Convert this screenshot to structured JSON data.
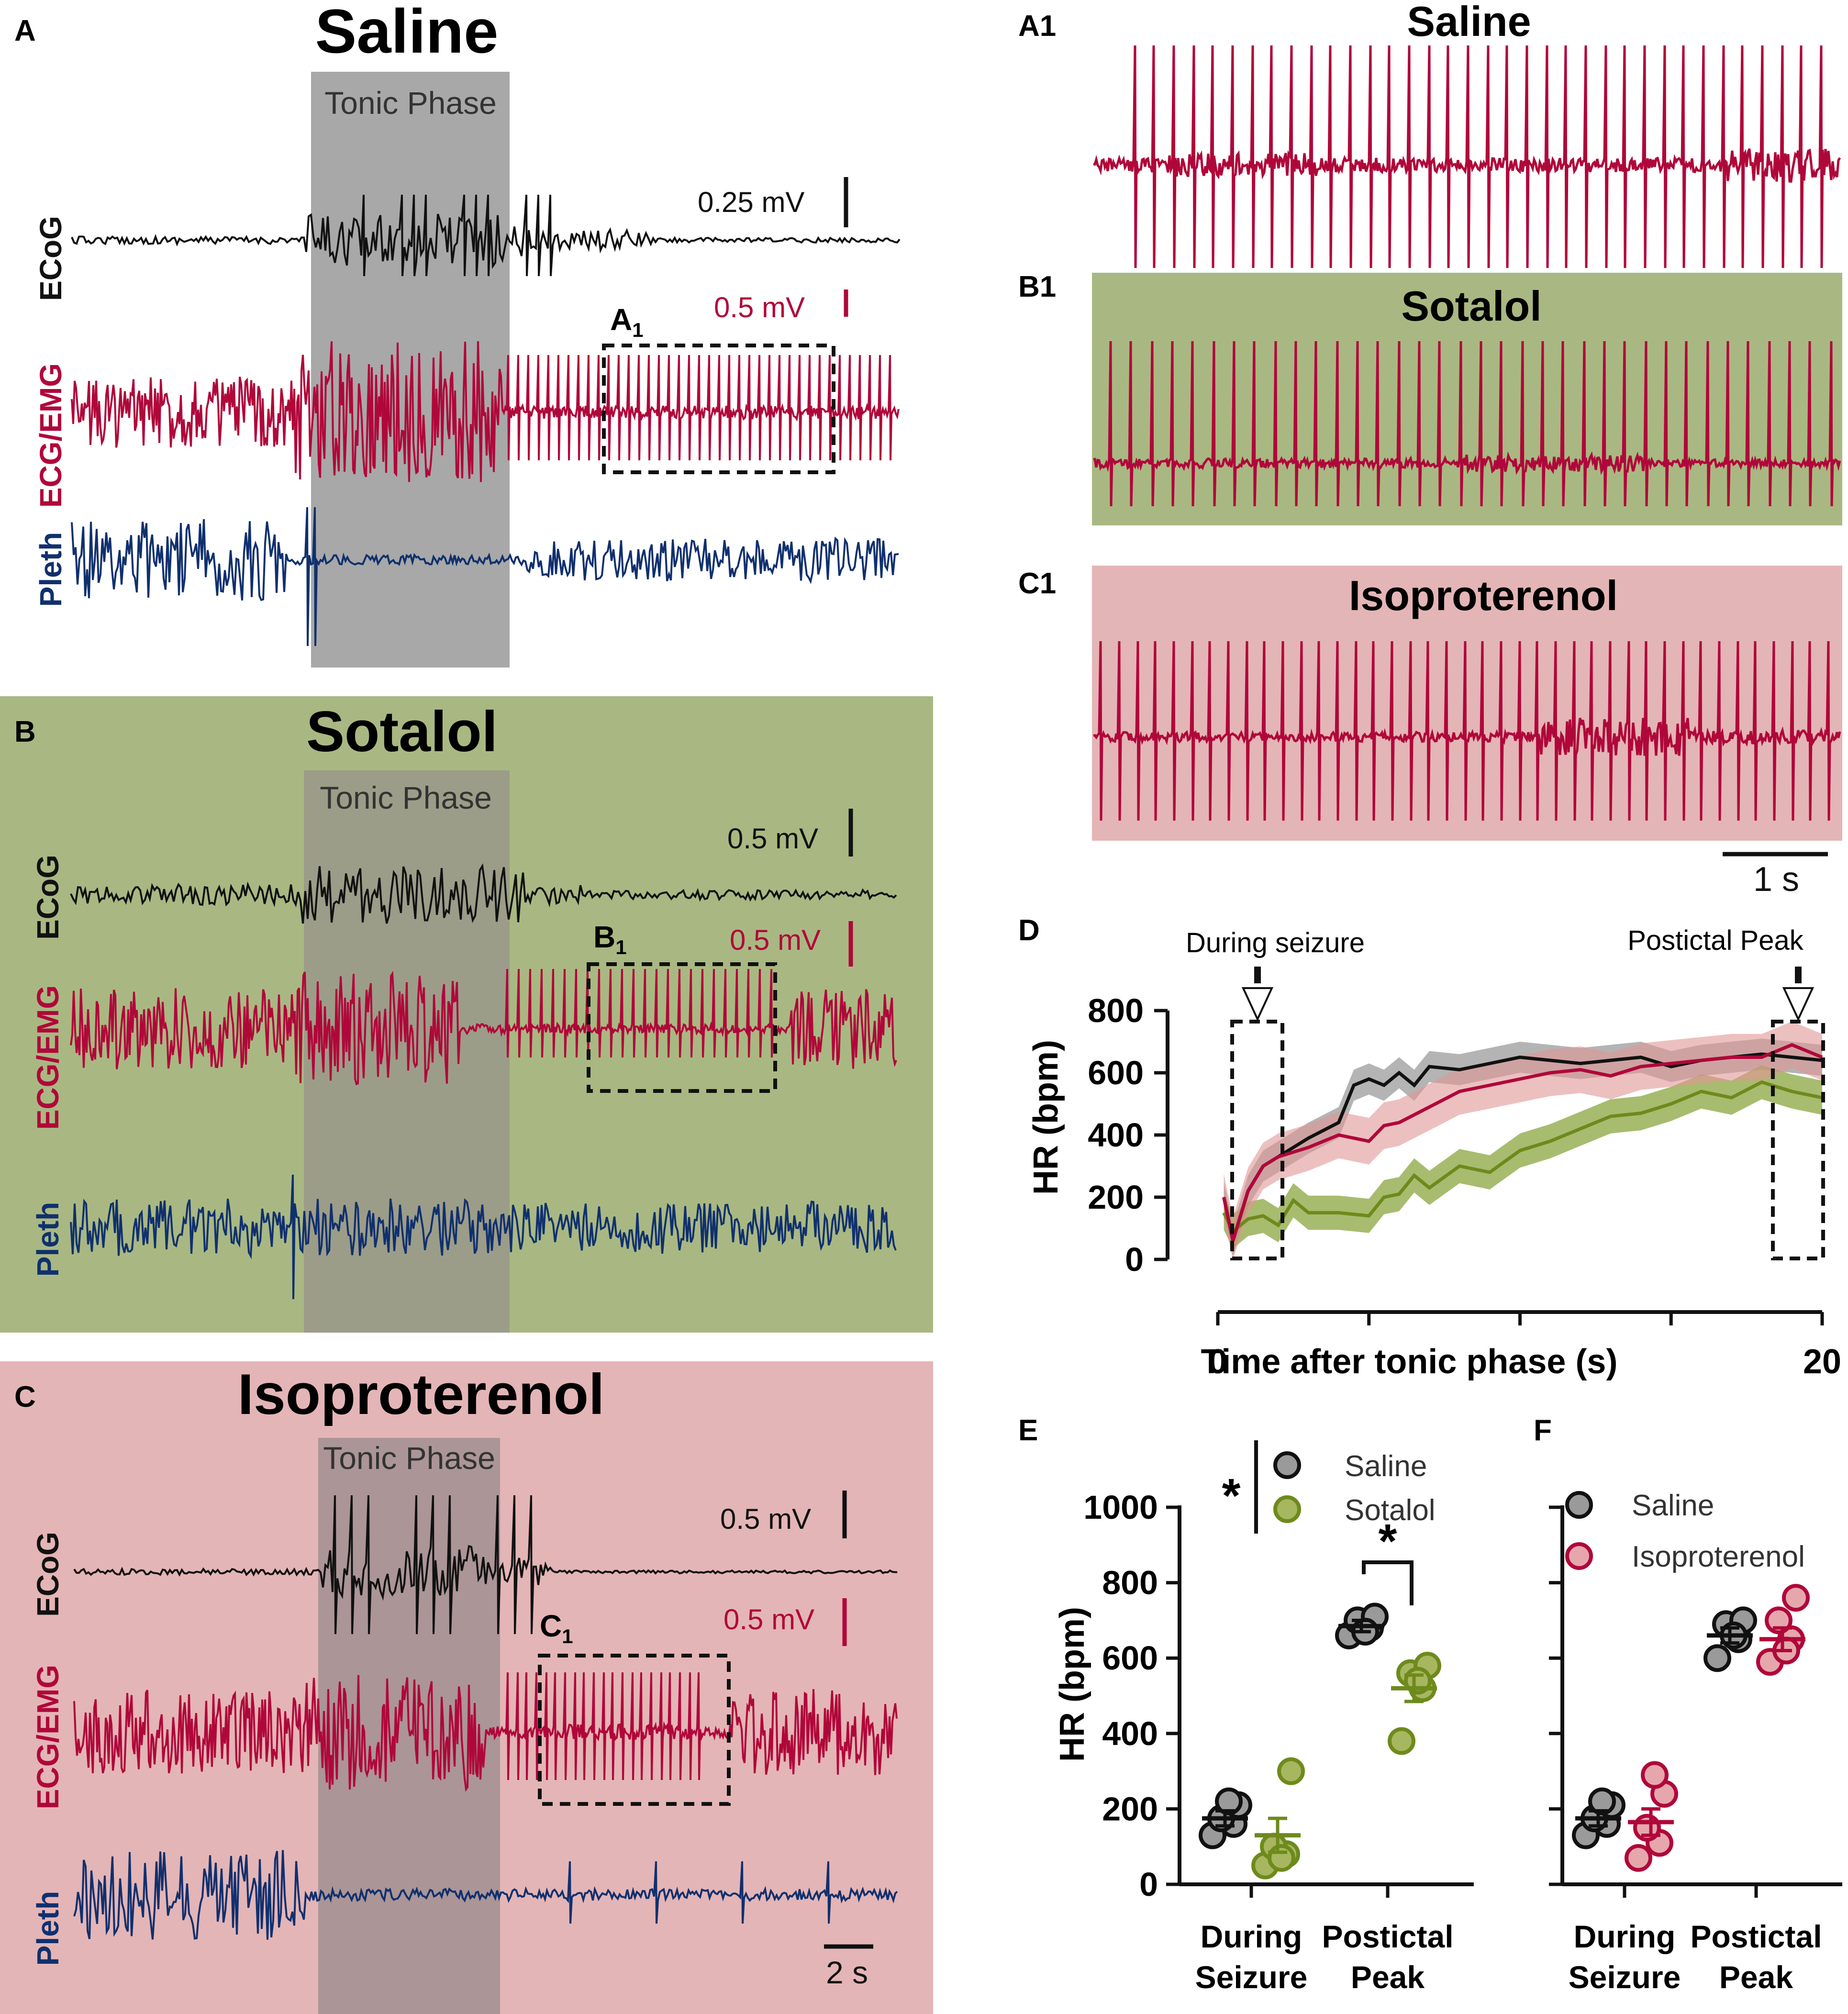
{
  "colors": {
    "black": "#111111",
    "ecg": "#b0073a",
    "pleth": "#10306e",
    "grey_series": "#8f8f8f",
    "sotalol": "#6e8a1c",
    "sotalol_bg": "#a9b882",
    "iso_bg": "#e4b5b6",
    "tonic_saline": "#a8a8a8",
    "tonic_sotalol": "#9c9d88",
    "tonic_iso": "#ab9597"
  },
  "panels": {
    "A": {
      "letter": "A",
      "title": "Saline",
      "tonic": "Tonic Phase",
      "ecog_label": "ECoG",
      "ecg_label": "ECG/EMG",
      "pleth_label": "Pleth",
      "scale_ecog": "0.25 mV",
      "scale_ecg": "0.5 mV",
      "box_label": "A",
      "box_sub": "1"
    },
    "B": {
      "letter": "B",
      "title": "Sotalol",
      "tonic": "Tonic Phase",
      "ecog_label": "ECoG",
      "ecg_label": "ECG/EMG",
      "pleth_label": "Pleth",
      "scale_ecog": "0.5 mV",
      "scale_ecg": "0.5 mV",
      "box_label": "B",
      "box_sub": "1"
    },
    "C": {
      "letter": "C",
      "title": "Isoproterenol",
      "tonic": "Tonic Phase",
      "ecog_label": "ECoG",
      "ecg_label": "ECG/EMG",
      "pleth_label": "Pleth",
      "scale_ecog": "0.5 mV",
      "scale_ecg": "0.5 mV",
      "box_label": "C",
      "box_sub": "1",
      "time_scale": "2 s"
    },
    "A1": {
      "letter": "A1",
      "title": "Saline"
    },
    "B1": {
      "letter": "B1",
      "title": "Sotalol"
    },
    "C1": {
      "letter": "C1",
      "title": "Isoproterenol",
      "time_scale": "1 s"
    }
  },
  "chart_data": [
    {
      "panel": "D",
      "type": "line",
      "ylabel": "HR (bpm)",
      "xlabel": "Time after tonic phase (s)",
      "ylim": [
        0,
        800
      ],
      "yticks": [
        "0",
        "200",
        "400",
        "600",
        "800"
      ],
      "xlim": [
        0,
        20
      ],
      "xticks": [
        "0",
        "20"
      ],
      "annotations": [
        "During seizure",
        "Postictal Peak"
      ],
      "series": [
        {
          "name": "Saline",
          "color": "grey",
          "x": [
            0.2,
            0.5,
            1,
            1.5,
            2,
            3,
            4,
            4.5,
            5,
            5.5,
            6,
            6.5,
            7,
            8,
            9,
            10,
            11,
            12,
            13,
            14,
            15,
            16,
            17,
            18,
            19,
            20
          ],
          "values": [
            200,
            60,
            220,
            300,
            330,
            390,
            440,
            560,
            580,
            560,
            600,
            560,
            620,
            610,
            630,
            650,
            640,
            630,
            640,
            650,
            620,
            640,
            650,
            660,
            650,
            640
          ]
        },
        {
          "name": "Sotalol",
          "color": "green",
          "x": [
            0.2,
            0.5,
            1,
            1.5,
            2,
            2.5,
            3,
            4,
            5,
            5.5,
            6,
            6.5,
            7,
            8,
            9,
            10,
            11,
            12,
            13,
            14,
            15,
            16,
            17,
            18,
            19,
            20
          ],
          "values": [
            150,
            90,
            130,
            140,
            110,
            190,
            150,
            150,
            140,
            200,
            210,
            270,
            230,
            300,
            280,
            350,
            380,
            420,
            460,
            470,
            500,
            540,
            520,
            570,
            540,
            520
          ]
        },
        {
          "name": "Isoproterenol",
          "color": "red",
          "x": [
            0.2,
            0.5,
            1,
            1.5,
            2,
            3,
            4,
            5,
            5.5,
            6,
            7,
            8,
            9,
            10,
            11,
            12,
            13,
            14,
            15,
            16,
            17,
            18,
            19,
            20
          ],
          "values": [
            200,
            60,
            220,
            300,
            330,
            360,
            400,
            380,
            430,
            440,
            490,
            540,
            560,
            580,
            600,
            610,
            590,
            620,
            630,
            640,
            650,
            650,
            690,
            650
          ]
        }
      ]
    },
    {
      "panel": "E",
      "type": "scatter",
      "ylabel": "HR (bpm)",
      "ylim": [
        0,
        1000
      ],
      "yticks": [
        "0",
        "200",
        "400",
        "600",
        "800",
        "1000"
      ],
      "categories": [
        "During Seizure",
        "Postictal Peak"
      ],
      "cat_lines": [
        [
          "During",
          "Seizure"
        ],
        [
          "Postictal",
          "Peak"
        ]
      ],
      "legend": [
        "Saline",
        "Sotalol"
      ],
      "significance": [
        "*",
        "*"
      ],
      "series": [
        {
          "name": "Saline",
          "color": "grey",
          "means": [
            175,
            685
          ],
          "sem": [
            20,
            15
          ],
          "values": [
            [
              130,
              160,
              175,
              210,
              220
            ],
            [
              660,
              680,
              700,
              710,
              670
            ]
          ]
        },
        {
          "name": "Sotalol",
          "color": "green",
          "means": [
            130,
            520
          ],
          "sem": [
            45,
            35
          ],
          "values": [
            [
              50,
              80,
              100,
              300,
              70
            ],
            [
              380,
              520,
              560,
              580,
              540
            ]
          ]
        }
      ]
    },
    {
      "panel": "F",
      "type": "scatter",
      "ylim": [
        0,
        1000
      ],
      "categories": [
        "During Seizure",
        "Postictal Peak"
      ],
      "cat_lines": [
        [
          "During",
          "Seizure"
        ],
        [
          "Postictal",
          "Peak"
        ]
      ],
      "legend": [
        "Saline",
        "Isoproterenol"
      ],
      "series": [
        {
          "name": "Saline",
          "color": "grey",
          "means": [
            175,
            660
          ],
          "sem": [
            20,
            20
          ],
          "values": [
            [
              130,
              160,
              175,
              210,
              220
            ],
            [
              600,
              650,
              690,
              700,
              660
            ]
          ]
        },
        {
          "name": "Isoproterenol",
          "color": "red",
          "means": [
            165,
            650
          ],
          "sem": [
            35,
            30
          ],
          "values": [
            [
              70,
              110,
              150,
              240,
              290
            ],
            [
              590,
              650,
              700,
              760,
              620
            ]
          ]
        }
      ]
    }
  ]
}
